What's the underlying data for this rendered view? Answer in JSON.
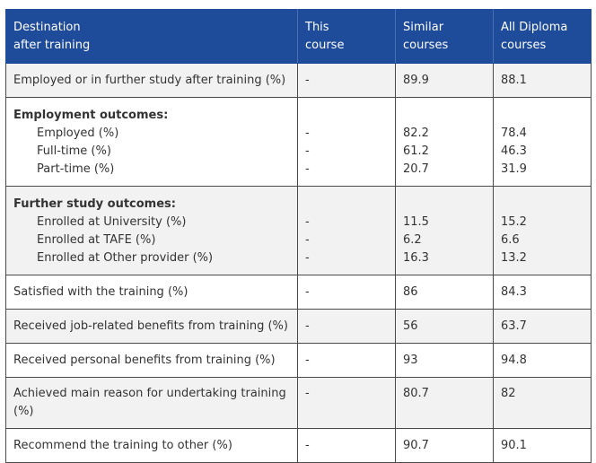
{
  "table": {
    "headers": {
      "col1": [
        "Destination",
        "after training"
      ],
      "col2": [
        "This",
        "course"
      ],
      "col3": [
        "Similar",
        "courses"
      ],
      "col4": [
        "All Diploma",
        "courses"
      ]
    },
    "rows": {
      "r1": {
        "label": "Employed or in further study after training (%)",
        "this": "-",
        "similar": "89.9",
        "all": "88.1"
      },
      "employment": {
        "heading": "Employment outcomes:",
        "items": [
          {
            "label": "Employed (%)",
            "this": "-",
            "similar": "82.2",
            "all": "78.4"
          },
          {
            "label": "Full-time (%)",
            "this": "-",
            "similar": "61.2",
            "all": "46.3"
          },
          {
            "label": "Part-time (%)",
            "this": "-",
            "similar": "20.7",
            "all": "31.9"
          }
        ]
      },
      "further_study": {
        "heading": "Further study outcomes:",
        "items": [
          {
            "label": "Enrolled at University (%)",
            "this": "-",
            "similar": "11.5",
            "all": "15.2"
          },
          {
            "label": "Enrolled at TAFE (%)",
            "this": "-",
            "similar": "6.2",
            "all": "6.6"
          },
          {
            "label": "Enrolled at Other provider (%)",
            "this": "-",
            "similar": "16.3",
            "all": "13.2"
          }
        ]
      },
      "satisfied": {
        "label": "Satisfied with the training (%)",
        "this": "-",
        "similar": "86",
        "all": "84.3"
      },
      "job_benefits": {
        "label": "Received job-related benefits from training (%)",
        "this": "-",
        "similar": "56",
        "all": "63.7"
      },
      "personal_benefits": {
        "label": "Received personal benefits from training (%)",
        "this": "-",
        "similar": "93",
        "all": "94.8"
      },
      "main_reason": {
        "label": "Achieved main reason for undertaking training (%)",
        "this": "-",
        "similar": "80.7",
        "all": "82"
      },
      "recommend": {
        "label": "Recommend the training to other (%)",
        "this": "-",
        "similar": "90.7",
        "all": "90.1"
      }
    }
  },
  "colors": {
    "header_bg": "#1f4c9a",
    "header_text": "#ffffff",
    "shaded_row": "#f2f2f2",
    "border": "#4a4a4a"
  }
}
